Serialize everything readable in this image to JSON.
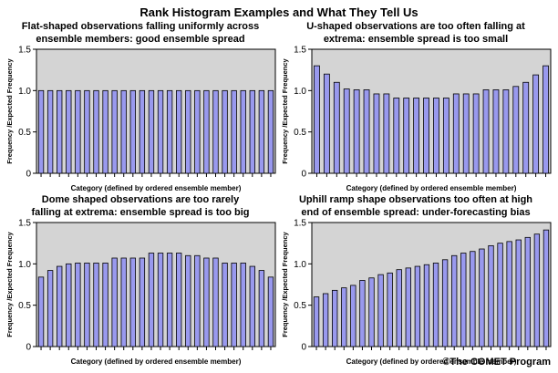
{
  "page": {
    "title": "Rank Histogram Examples and What They Tell Us",
    "credit": "©The COMET Program"
  },
  "colors": {
    "plot_bg": "#d4d4d4",
    "bar_fill": "#9999ee",
    "bar_stroke": "#000000"
  },
  "chart_data": [
    {
      "type": "bar",
      "title": "Flat-shaped observations falling uniformly across ensemble members: good ensemble spread",
      "title_lines": [
        "Flat-shaped observations falling uniformly across",
        "ensemble members: good ensemble spread"
      ],
      "xlabel": "Category (defined by ordered ensemble member)",
      "ylabel": "Frequency /Expected Frequency",
      "ylim": [
        0,
        1.5
      ],
      "yticks": [
        0,
        0.5,
        1.0,
        1.5
      ],
      "ytick_labels": [
        "0",
        "0.5",
        "1.0",
        "1.5"
      ],
      "values": [
        1.0,
        1.0,
        1.0,
        1.0,
        1.0,
        1.0,
        1.0,
        1.0,
        1.0,
        1.0,
        1.0,
        1.0,
        1.0,
        1.0,
        1.0,
        1.0,
        1.0,
        1.0,
        1.0,
        1.0,
        1.0,
        1.0,
        1.0,
        1.0,
        1.0,
        1.0
      ]
    },
    {
      "type": "bar",
      "title": "U-shaped observations are too often falling at extrema: ensemble spread is too small",
      "title_lines": [
        "U-shaped observations are too often falling at",
        "extrema: ensemble spread is too small"
      ],
      "xlabel": "Category (defined by ordered ensemble member)",
      "ylabel": "Frequency /Expected Frequency",
      "ylim": [
        0,
        1.5
      ],
      "yticks": [
        0,
        0.5,
        1.0,
        1.5
      ],
      "ytick_labels": [
        "0",
        "0.5",
        "1.0",
        "1.5"
      ],
      "values": [
        1.3,
        1.2,
        1.1,
        1.02,
        1.01,
        1.01,
        0.96,
        0.96,
        0.91,
        0.91,
        0.91,
        0.91,
        0.91,
        0.91,
        0.96,
        0.96,
        0.96,
        1.01,
        1.01,
        1.01,
        1.05,
        1.1,
        1.19,
        1.3
      ]
    },
    {
      "type": "bar",
      "title": "Dome shaped observations are too rarely falling at extrema: ensemble spread is too big",
      "title_lines": [
        "Dome shaped observations are too rarely",
        "falling at extrema: ensemble spread is too big"
      ],
      "xlabel": "Category (defined by ordered ensemble member)",
      "ylabel": "Frequency /Expected Frequency",
      "ylim": [
        0,
        1.5
      ],
      "yticks": [
        0,
        0.5,
        1.0,
        1.5
      ],
      "ytick_labels": [
        "0",
        "0.5",
        "1.0",
        "1.5"
      ],
      "values": [
        0.84,
        0.92,
        0.97,
        1.0,
        1.01,
        1.01,
        1.01,
        1.01,
        1.07,
        1.07,
        1.07,
        1.07,
        1.13,
        1.13,
        1.13,
        1.13,
        1.1,
        1.1,
        1.07,
        1.07,
        1.01,
        1.01,
        1.01,
        0.97,
        0.92,
        0.84
      ]
    },
    {
      "type": "bar",
      "title": "Uphill ramp shape observations too often at high end of ensemble spread: under-forecasting bias",
      "title_lines": [
        "Uphill ramp shape observations too often at high",
        "end of ensemble spread: under-forecasting bias"
      ],
      "xlabel": "Category (defined by ordered ensemble member)",
      "ylabel": "Frequency /Expected Frequency",
      "ylim": [
        0,
        1.5
      ],
      "yticks": [
        0,
        0.5,
        1.0,
        1.5
      ],
      "ytick_labels": [
        "0",
        "0.5",
        "1.0",
        "1.5"
      ],
      "values": [
        0.6,
        0.64,
        0.68,
        0.71,
        0.74,
        0.8,
        0.83,
        0.87,
        0.89,
        0.93,
        0.95,
        0.97,
        0.99,
        1.01,
        1.05,
        1.1,
        1.13,
        1.15,
        1.18,
        1.22,
        1.25,
        1.27,
        1.29,
        1.32,
        1.36,
        1.41
      ]
    }
  ]
}
